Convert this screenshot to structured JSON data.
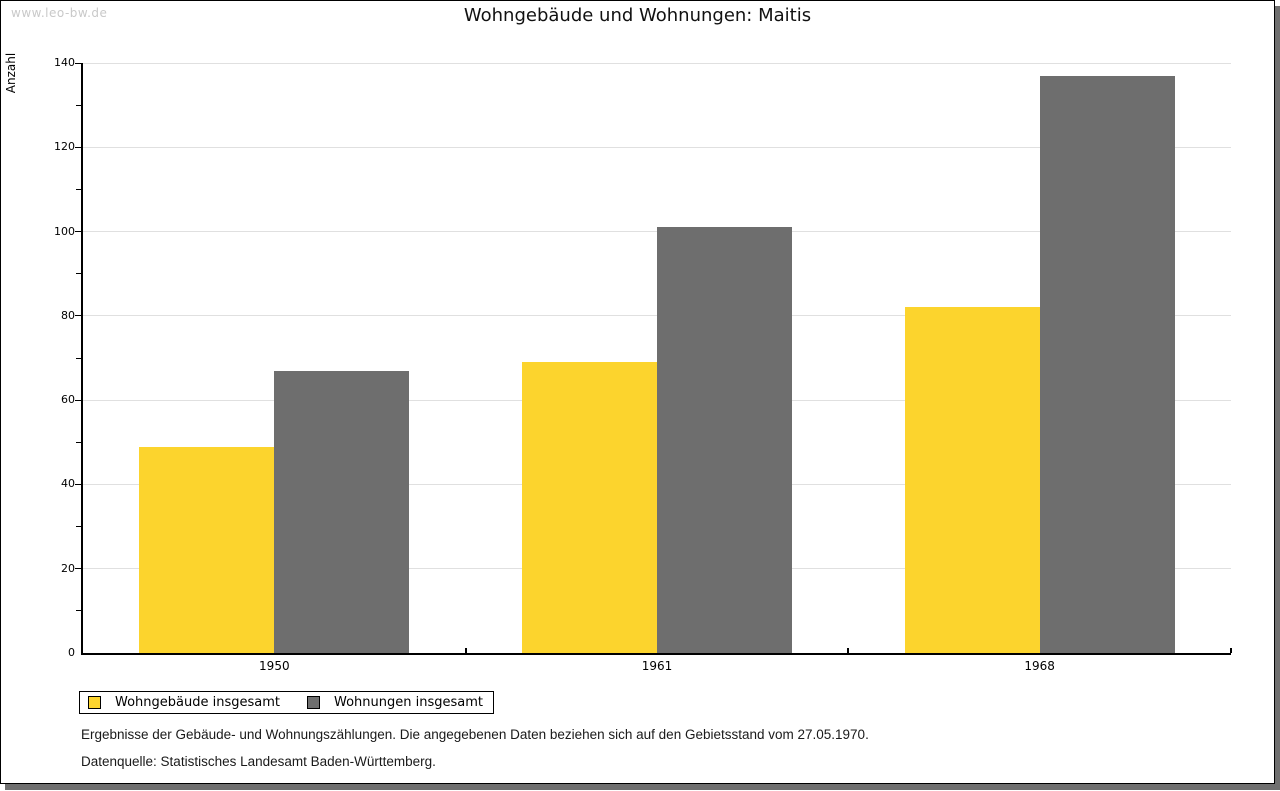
{
  "watermark": "www.leo-bw.de",
  "chart_data": {
    "type": "bar",
    "title": "Wohngebäude und Wohnungen: Maitis",
    "categories": [
      "1950",
      "1961",
      "1968"
    ],
    "series": [
      {
        "name": "Wohngebäude insgesamt",
        "color": "#FCD42D",
        "values": [
          49,
          69,
          82
        ]
      },
      {
        "name": "Wohnungen insgesamt",
        "color": "#6E6E6E",
        "values": [
          67,
          101,
          137
        ]
      }
    ],
    "xlabel": "",
    "ylabel": "Anzahl",
    "ylim": [
      0,
      140
    ],
    "yticks": [
      0,
      20,
      40,
      60,
      80,
      100,
      120,
      140
    ],
    "minor_tick_step": 10,
    "grid": true,
    "gridline_color": "#E0E0E0",
    "legend_position": "bottom-left"
  },
  "footnotes": {
    "line1": "Ergebnisse der Gebäude- und Wohnungszählungen. Die angegebenen Daten beziehen sich auf den Gebietsstand vom 27.05.1970.",
    "line2": "Datenquelle: Statistisches Landesamt Baden-Württemberg."
  }
}
